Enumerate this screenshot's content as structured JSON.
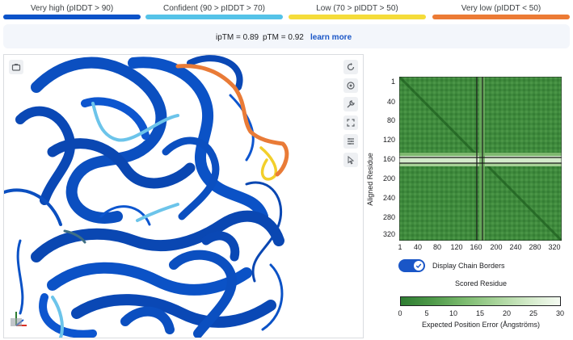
{
  "plddt_legend": [
    {
      "label": "Very high (pIDDT > 90)",
      "color": "#0b53c9"
    },
    {
      "label": "Confident (90 > pIDDT > 70)",
      "color": "#55c3e8"
    },
    {
      "label": "Low (70 > pIDDT > 50)",
      "color": "#f5dc3a"
    },
    {
      "label": "Very low (pIDDT < 50)",
      "color": "#ec7b35"
    }
  ],
  "scores": {
    "iptm": "ipTM = 0.89",
    "ptm": "pTM = 0.92",
    "learn_more": "learn more"
  },
  "viewer": {
    "tools": [
      "reset-icon",
      "center-icon",
      "wrench-icon",
      "fullscreen-icon",
      "sequence-icon",
      "pointer-icon"
    ],
    "left_tool": "screenshot-icon"
  },
  "pae": {
    "y_label": "Aligned Residue",
    "x_label": "Scored Residue",
    "y_ticks": [
      "1",
      "40",
      "80",
      "120",
      "160",
      "200",
      "240",
      "280",
      "320"
    ],
    "x_ticks": [
      "1",
      "40",
      "80",
      "120",
      "160",
      "200",
      "240",
      "280",
      "320"
    ],
    "toggle_label": "Display Chain Borders",
    "toggle_on": true,
    "colorbar_ticks": [
      "0",
      "5",
      "10",
      "15",
      "20",
      "25",
      "30"
    ],
    "colorbar_label": "Expected Position Error (Ångströms)"
  }
}
